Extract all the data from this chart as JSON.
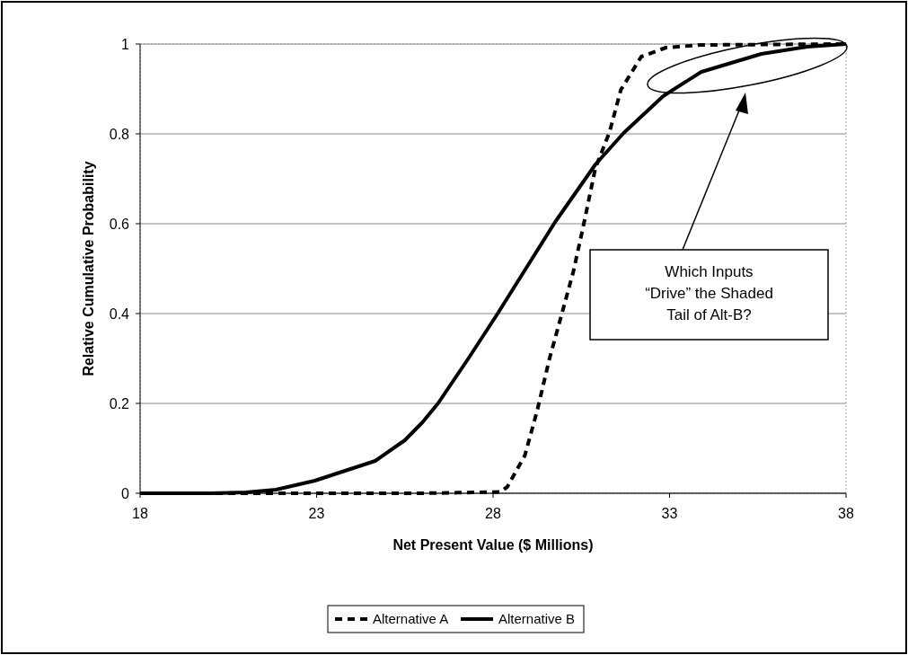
{
  "chart_data": {
    "type": "line",
    "xlabel": "Net Present Value ($ Millions)",
    "ylabel": "Relative Cumulative Probability",
    "xlim": [
      18,
      38
    ],
    "xticks": [
      18,
      23,
      28,
      33,
      38
    ],
    "ylim": [
      0,
      1
    ],
    "yticks": [
      0,
      0.2,
      0.4,
      0.6,
      0.8,
      1
    ],
    "grid": "y",
    "legend": "bottom",
    "marker": "none",
    "series": [
      {
        "name": "Alternative A",
        "color": "#000000",
        "line_style": "dashed",
        "x": [
          18,
          22,
          26,
          28.2,
          28.4,
          28.9,
          29.25,
          29.6,
          29.95,
          30.27,
          30.55,
          30.9,
          31.3,
          31.62,
          32.2,
          32.9,
          33.9,
          38
        ],
        "values": [
          0,
          0,
          0,
          0.003,
          0.014,
          0.084,
          0.184,
          0.3,
          0.4,
          0.492,
          0.592,
          0.724,
          0.804,
          0.898,
          0.972,
          0.992,
          0.998,
          1
        ]
      },
      {
        "name": "Alternative B",
        "color": "#000000",
        "line_style": "solid",
        "x": [
          18,
          20,
          21,
          21.85,
          22.95,
          24.66,
          25.5,
          26.0,
          26.44,
          27.3,
          28.13,
          28.64,
          29.76,
          30.9,
          31.7,
          32.82,
          33.9,
          35.6,
          36.9,
          38
        ],
        "values": [
          0,
          0,
          0.002,
          0.008,
          0.028,
          0.072,
          0.118,
          0.158,
          0.2,
          0.3,
          0.4,
          0.464,
          0.604,
          0.732,
          0.802,
          0.884,
          0.938,
          0.978,
          0.994,
          1
        ]
      }
    ],
    "annotations": [
      "Which Inputs “Drive” the Shaded Tail of Alt-B?"
    ]
  }
}
